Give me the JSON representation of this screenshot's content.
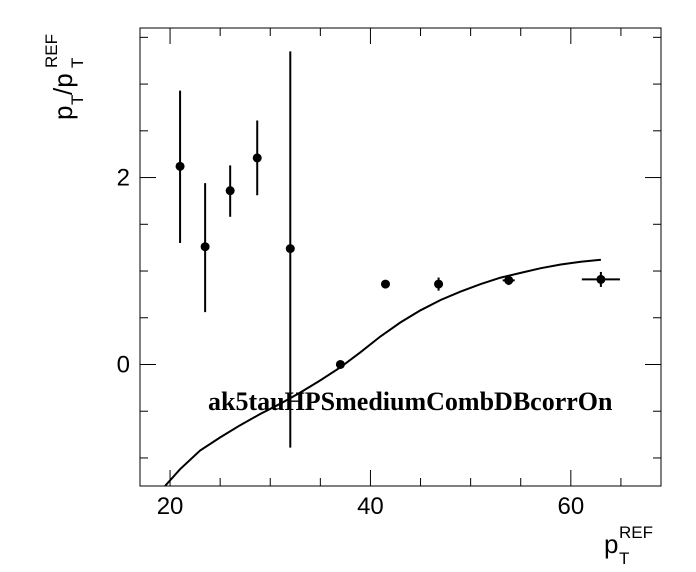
{
  "chart_data": {
    "type": "scatter",
    "title": "",
    "xlabel": {
      "base": "p",
      "sub": "T",
      "sup": "REF"
    },
    "ylabel": {
      "base": "p",
      "sub": "T",
      "mid": "/p",
      "sub2": "T",
      "sup": "REF"
    },
    "xlim": [
      17,
      69
    ],
    "ylim": [
      -1.3,
      3.6
    ],
    "xticks": [
      20,
      40,
      60
    ],
    "yticks": [
      0,
      2
    ],
    "grid": false,
    "annotation": "ak5tauHPSmediumCombDBcorrOn",
    "points": [
      {
        "x": 21.0,
        "y": 2.12,
        "yerr_lo": 0.82,
        "yerr_hi": 0.81,
        "xerr": 0
      },
      {
        "x": 23.5,
        "y": 1.26,
        "yerr_lo": 0.7,
        "yerr_hi": 0.68,
        "xerr": 0
      },
      {
        "x": 26.0,
        "y": 1.86,
        "yerr_lo": 0.28,
        "yerr_hi": 0.27,
        "xerr": 0
      },
      {
        "x": 28.7,
        "y": 2.21,
        "yerr_lo": 0.4,
        "yerr_hi": 0.4,
        "xerr": 0
      },
      {
        "x": 32.0,
        "y": 1.24,
        "yerr_lo": 2.13,
        "yerr_hi": 2.11,
        "xerr": 0
      },
      {
        "x": 37.0,
        "y": 0.0,
        "yerr_lo": 0.03,
        "yerr_hi": 0.03,
        "xerr": 0
      },
      {
        "x": 41.5,
        "y": 0.86,
        "yerr_lo": 0.04,
        "yerr_hi": 0.04,
        "xerr": 0
      },
      {
        "x": 46.8,
        "y": 0.86,
        "yerr_lo": 0.07,
        "yerr_hi": 0.07,
        "xerr": 0
      },
      {
        "x": 53.8,
        "y": 0.9,
        "yerr_lo": 0.05,
        "yerr_hi": 0.05,
        "xerr": 0.6
      },
      {
        "x": 63.0,
        "y": 0.91,
        "yerr_lo": 0.08,
        "yerr_hi": 0.08,
        "xerr": 1.9
      }
    ],
    "fit_curve": {
      "x": [
        19.5,
        21,
        23,
        25,
        27,
        29,
        31,
        33,
        35,
        37,
        39,
        41,
        43,
        45,
        47,
        49,
        51,
        53,
        55,
        57,
        59,
        61,
        63
      ],
      "y": [
        -1.3,
        -1.12,
        -0.92,
        -0.78,
        -0.65,
        -0.53,
        -0.42,
        -0.3,
        -0.17,
        -0.03,
        0.13,
        0.3,
        0.45,
        0.58,
        0.69,
        0.78,
        0.86,
        0.93,
        0.98,
        1.03,
        1.07,
        1.1,
        1.12
      ]
    }
  }
}
